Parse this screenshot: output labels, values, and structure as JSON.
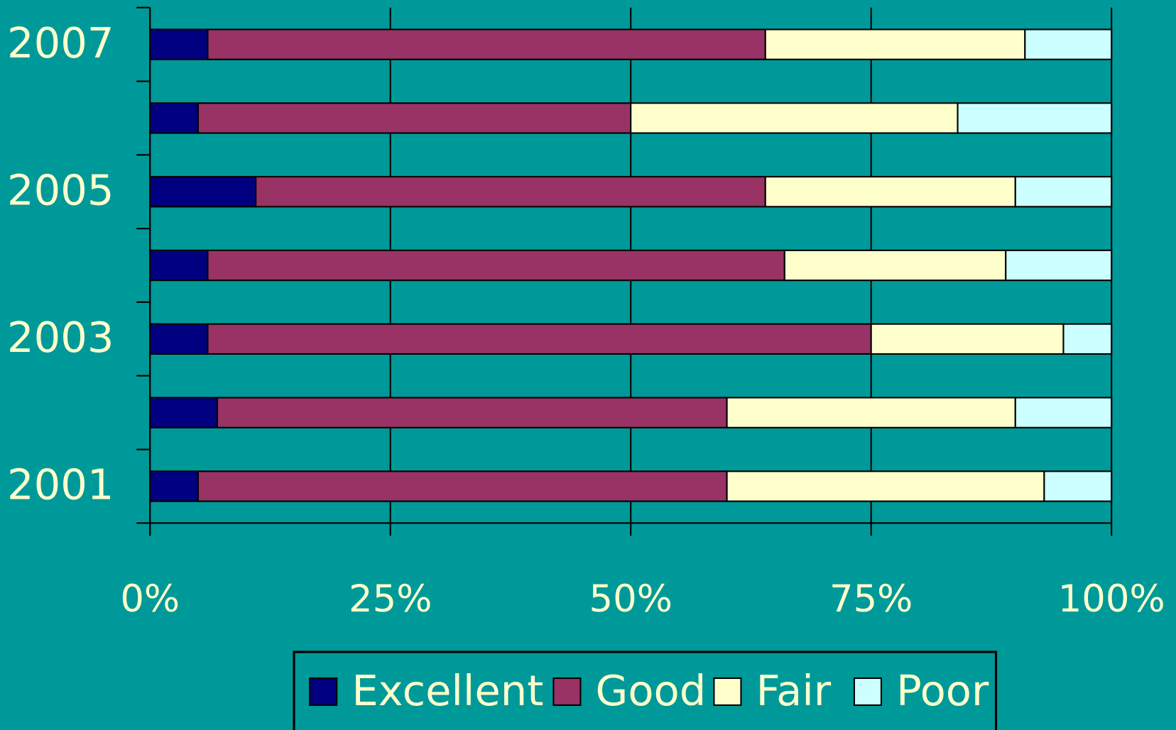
{
  "chart_data": {
    "type": "stacked-bar-horizontal",
    "categories": [
      "2007",
      null,
      "2005",
      null,
      "2003",
      null,
      "2001"
    ],
    "series": [
      {
        "name": "Excellent",
        "color": "#000080",
        "values": [
          6,
          5,
          11,
          6,
          6,
          7,
          5
        ]
      },
      {
        "name": "Good",
        "color": "#993366",
        "values": [
          58,
          45,
          53,
          60,
          69,
          53,
          55
        ]
      },
      {
        "name": "Fair",
        "color": "#ffffcc",
        "values": [
          27,
          34,
          26,
          23,
          20,
          30,
          33
        ]
      },
      {
        "name": "Poor",
        "color": "#ccffff",
        "values": [
          9,
          16,
          10,
          11,
          5,
          10,
          7
        ]
      }
    ],
    "xlim": [
      0,
      100
    ],
    "xticks": [
      {
        "value": 0,
        "label": "0%"
      },
      {
        "value": 25,
        "label": "25%"
      },
      {
        "value": 50,
        "label": "50%"
      },
      {
        "value": 75,
        "label": "75%"
      },
      {
        "value": 100,
        "label": "100%"
      }
    ],
    "grid": true,
    "legend": "bottom"
  }
}
